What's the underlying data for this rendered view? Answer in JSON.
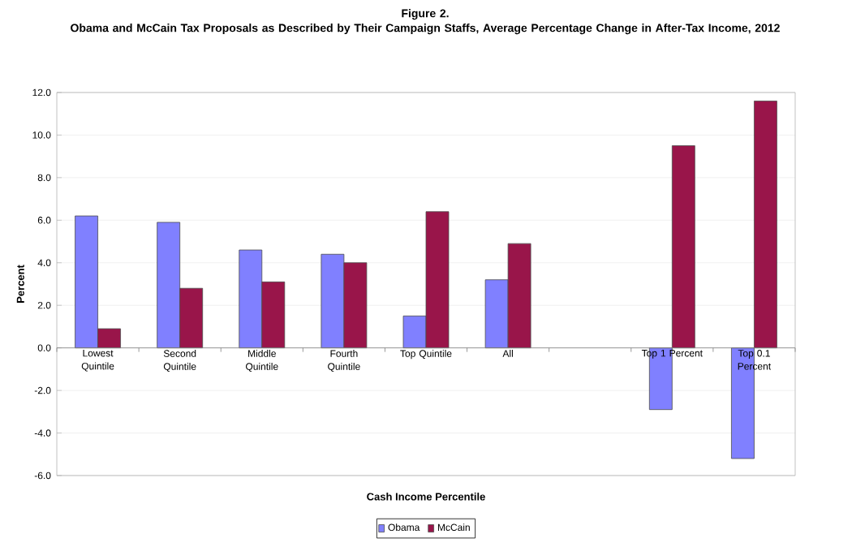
{
  "chart_data": {
    "type": "bar",
    "title": "Figure 2.",
    "subtitle": "Obama and McCain Tax Proposals as Described by Their Campaign Staffs, Average Percentage Change in After-Tax Income, 2012",
    "xlabel": "Cash Income Percentile",
    "ylabel": "Percent",
    "categories": [
      "Lowest Quintile",
      "Second Quintile",
      "Middle Quintile",
      "Fourth Quintile",
      "Top Quintile",
      "All",
      null,
      "Top 1 Percent",
      "Top 0.1 Percent"
    ],
    "series": [
      {
        "name": "Obama",
        "color": "#8080ff",
        "values": [
          6.2,
          5.9,
          4.6,
          4.4,
          1.5,
          3.2,
          null,
          -2.9,
          -5.2
        ]
      },
      {
        "name": "McCain",
        "color": "#99154a",
        "values": [
          0.9,
          2.8,
          3.1,
          4.0,
          6.4,
          4.9,
          null,
          9.5,
          11.6
        ]
      }
    ],
    "ylim": [
      -6,
      12
    ],
    "yticks": [
      {
        "value": -6,
        "label": "-6.0"
      },
      {
        "value": -4,
        "label": "-4.0"
      },
      {
        "value": -2,
        "label": "-2.0"
      },
      {
        "value": 0,
        "label": "0.0"
      },
      {
        "value": 2,
        "label": "2.0"
      },
      {
        "value": 4,
        "label": "4.0"
      },
      {
        "value": 6,
        "label": "6.0"
      },
      {
        "value": 8,
        "label": "8.0"
      },
      {
        "value": 10,
        "label": "10.0"
      },
      {
        "value": 12,
        "label": "12.0"
      }
    ],
    "grid": "y",
    "legend": "bottom"
  }
}
